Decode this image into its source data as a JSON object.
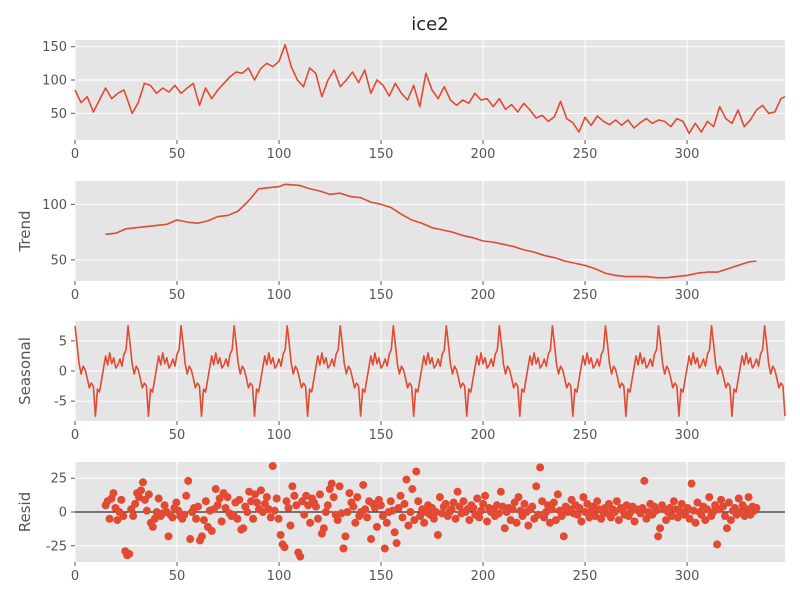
{
  "chart_data": {
    "type": "line",
    "title": "ice2",
    "color": "#E24A33",
    "panel_bg": "#E5E5E5",
    "grid_color": "#FFFFFF",
    "panels": [
      {
        "id": "observed",
        "type": "line",
        "ylabel": "",
        "xlim": [
          0,
          348
        ],
        "ylim": [
          10,
          160
        ],
        "xticks": [
          0,
          50,
          100,
          150,
          200,
          250,
          300
        ],
        "yticks": [
          50,
          100,
          150
        ],
        "points": [
          [
            0,
            85
          ],
          [
            3,
            66
          ],
          [
            6,
            75
          ],
          [
            9,
            52
          ],
          [
            12,
            70
          ],
          [
            15,
            88
          ],
          [
            18,
            72
          ],
          [
            21,
            80
          ],
          [
            24,
            85
          ],
          [
            26,
            68
          ],
          [
            28,
            50
          ],
          [
            31,
            66
          ],
          [
            34,
            95
          ],
          [
            37,
            92
          ],
          [
            40,
            80
          ],
          [
            43,
            88
          ],
          [
            46,
            82
          ],
          [
            49,
            92
          ],
          [
            52,
            80
          ],
          [
            55,
            88
          ],
          [
            58,
            95
          ],
          [
            61,
            62
          ],
          [
            64,
            88
          ],
          [
            67,
            72
          ],
          [
            70,
            85
          ],
          [
            73,
            95
          ],
          [
            76,
            105
          ],
          [
            79,
            112
          ],
          [
            82,
            110
          ],
          [
            85,
            118
          ],
          [
            88,
            100
          ],
          [
            91,
            117
          ],
          [
            94,
            125
          ],
          [
            97,
            120
          ],
          [
            100,
            128
          ],
          [
            103,
            153
          ],
          [
            106,
            120
          ],
          [
            109,
            100
          ],
          [
            112,
            90
          ],
          [
            115,
            118
          ],
          [
            118,
            110
          ],
          [
            121,
            75
          ],
          [
            124,
            100
          ],
          [
            127,
            115
          ],
          [
            130,
            90
          ],
          [
            133,
            100
          ],
          [
            136,
            112
          ],
          [
            139,
            96
          ],
          [
            142,
            115
          ],
          [
            145,
            80
          ],
          [
            148,
            100
          ],
          [
            151,
            92
          ],
          [
            154,
            76
          ],
          [
            157,
            95
          ],
          [
            160,
            80
          ],
          [
            163,
            70
          ],
          [
            166,
            92
          ],
          [
            169,
            60
          ],
          [
            172,
            110
          ],
          [
            175,
            85
          ],
          [
            178,
            72
          ],
          [
            181,
            90
          ],
          [
            184,
            70
          ],
          [
            187,
            62
          ],
          [
            190,
            70
          ],
          [
            193,
            65
          ],
          [
            196,
            80
          ],
          [
            199,
            70
          ],
          [
            202,
            72
          ],
          [
            205,
            60
          ],
          [
            208,
            72
          ],
          [
            211,
            56
          ],
          [
            214,
            63
          ],
          [
            217,
            52
          ],
          [
            220,
            65
          ],
          [
            223,
            55
          ],
          [
            226,
            43
          ],
          [
            229,
            47
          ],
          [
            232,
            38
          ],
          [
            235,
            45
          ],
          [
            238,
            68
          ],
          [
            241,
            42
          ],
          [
            244,
            36
          ],
          [
            247,
            22
          ],
          [
            250,
            44
          ],
          [
            253,
            32
          ],
          [
            256,
            46
          ],
          [
            259,
            38
          ],
          [
            262,
            33
          ],
          [
            265,
            40
          ],
          [
            268,
            32
          ],
          [
            271,
            40
          ],
          [
            274,
            28
          ],
          [
            277,
            36
          ],
          [
            280,
            42
          ],
          [
            283,
            35
          ],
          [
            286,
            40
          ],
          [
            289,
            38
          ],
          [
            292,
            30
          ],
          [
            295,
            42
          ],
          [
            298,
            38
          ],
          [
            301,
            20
          ],
          [
            304,
            35
          ],
          [
            307,
            22
          ],
          [
            310,
            38
          ],
          [
            313,
            30
          ],
          [
            316,
            60
          ],
          [
            319,
            42
          ],
          [
            322,
            35
          ],
          [
            325,
            55
          ],
          [
            328,
            30
          ],
          [
            331,
            40
          ],
          [
            334,
            55
          ],
          [
            337,
            62
          ],
          [
            340,
            50
          ],
          [
            343,
            52
          ],
          [
            346,
            72
          ],
          [
            348,
            75
          ]
        ]
      },
      {
        "id": "trend",
        "type": "line",
        "ylabel": "Trend",
        "xlim": [
          0,
          348
        ],
        "ylim": [
          31,
          121
        ],
        "xticks": [
          0,
          50,
          100,
          150,
          200,
          250,
          300
        ],
        "yticks": [
          50,
          100
        ],
        "points": [
          [
            15,
            73
          ],
          [
            20,
            74
          ],
          [
            25,
            78
          ],
          [
            30,
            79
          ],
          [
            40,
            81
          ],
          [
            45,
            82
          ],
          [
            50,
            86
          ],
          [
            55,
            84
          ],
          [
            60,
            83
          ],
          [
            65,
            85
          ],
          [
            70,
            89
          ],
          [
            75,
            90
          ],
          [
            80,
            94
          ],
          [
            85,
            103
          ],
          [
            90,
            114
          ],
          [
            95,
            115
          ],
          [
            100,
            116
          ],
          [
            103,
            118
          ],
          [
            110,
            117
          ],
          [
            115,
            114
          ],
          [
            120,
            112
          ],
          [
            125,
            109
          ],
          [
            130,
            110
          ],
          [
            135,
            107
          ],
          [
            140,
            106
          ],
          [
            145,
            102
          ],
          [
            150,
            100
          ],
          [
            155,
            97
          ],
          [
            160,
            91
          ],
          [
            165,
            86
          ],
          [
            170,
            83
          ],
          [
            175,
            79
          ],
          [
            180,
            77
          ],
          [
            185,
            75
          ],
          [
            190,
            72
          ],
          [
            195,
            70
          ],
          [
            200,
            67
          ],
          [
            205,
            66
          ],
          [
            210,
            64
          ],
          [
            215,
            62
          ],
          [
            220,
            59
          ],
          [
            225,
            57
          ],
          [
            230,
            54
          ],
          [
            235,
            52
          ],
          [
            240,
            49
          ],
          [
            245,
            47
          ],
          [
            250,
            45
          ],
          [
            255,
            42
          ],
          [
            260,
            38
          ],
          [
            265,
            36
          ],
          [
            270,
            35
          ],
          [
            280,
            35
          ],
          [
            285,
            34
          ],
          [
            290,
            34
          ],
          [
            295,
            35
          ],
          [
            300,
            36
          ],
          [
            305,
            38
          ],
          [
            310,
            39
          ],
          [
            315,
            39
          ],
          [
            320,
            42
          ],
          [
            325,
            45
          ],
          [
            330,
            48
          ],
          [
            334,
            49
          ]
        ]
      },
      {
        "id": "seasonal",
        "type": "line",
        "ylabel": "Seasonal",
        "xlim": [
          0,
          348
        ],
        "ylim": [
          -8.3,
          8.3
        ],
        "xticks": [
          0,
          50,
          100,
          150,
          200,
          250,
          300
        ],
        "yticks": [
          -5,
          0,
          5
        ],
        "period": 26,
        "pattern": [
          0.8,
          0.2,
          -1.2,
          -2.8,
          -2.0,
          -2.5,
          -7.5,
          -3.0,
          -3.5,
          -1.5,
          0.5,
          2.5,
          1.0,
          3.0,
          1.2,
          2.2,
          0.5,
          1.0,
          2.0,
          0.8,
          2.8,
          3.5,
          7.5,
          4.5,
          1.2,
          -0.5
        ],
        "phase": 22
      },
      {
        "id": "resid",
        "type": "scatter",
        "ylabel": "Resid",
        "xlim": [
          0,
          348
        ],
        "ylim": [
          -37,
          37
        ],
        "xticks": [
          0,
          50,
          100,
          150,
          200,
          250,
          300
        ],
        "yticks": [
          -25,
          0,
          25
        ],
        "zero_line": true,
        "x_start": 15,
        "x_end": 334,
        "values": [
          5,
          8,
          -5,
          10,
          14,
          3,
          -6,
          0,
          9,
          -3,
          -29,
          -32,
          -31,
          2,
          -3,
          6,
          14,
          11,
          16,
          22,
          9,
          1,
          13,
          -8,
          -11,
          -5,
          0,
          10,
          -3,
          -1,
          5,
          0,
          -18,
          -2,
          -4,
          3,
          7,
          1,
          -3,
          -5,
          -2,
          12,
          23,
          -20,
          0,
          3,
          -5,
          4,
          -21,
          -18,
          -6,
          8,
          -11,
          1,
          -14,
          2,
          17,
          5,
          10,
          -7,
          14,
          3,
          11,
          -1,
          -3,
          -2,
          7,
          -5,
          9,
          -13,
          -12,
          4,
          0,
          15,
          8,
          -5,
          13,
          7,
          2,
          16,
          0,
          6,
          11,
          2,
          -4,
          34,
          1,
          10,
          -5,
          -17,
          -24,
          -26,
          8,
          3,
          -10,
          19,
          12,
          5,
          -30,
          -33,
          8,
          -2,
          12,
          5,
          -8,
          10,
          7,
          4,
          -5,
          13,
          -16,
          -12,
          0,
          5,
          17,
          21,
          11,
          -2,
          -6,
          19,
          -1,
          -27,
          -18,
          0,
          14,
          7,
          4,
          -8,
          11,
          -3,
          0,
          20,
          2,
          -4,
          8,
          -20,
          6,
          3,
          -11,
          9,
          5,
          -3,
          -27,
          -8,
          0,
          8,
          1,
          -15,
          -23,
          3,
          12,
          -4,
          6,
          24,
          -10,
          0,
          17,
          -6,
          30,
          8,
          -3,
          2,
          -8,
          0,
          5,
          -2,
          3,
          -5,
          0,
          -17,
          11,
          -1,
          4,
          6,
          -3,
          0,
          2,
          7,
          -5,
          15,
          4,
          -1,
          8,
          0,
          2,
          -6,
          5,
          3,
          -2,
          10,
          -4,
          1,
          6,
          12,
          -7,
          3,
          0,
          2,
          -3,
          5,
          -1,
          15,
          4,
          -12,
          0,
          3,
          -6,
          2,
          7,
          -8,
          11,
          1,
          -3,
          6,
          0,
          -10,
          2,
          4,
          -5,
          19,
          -2,
          33,
          8,
          -4,
          0,
          5,
          -8,
          2,
          7,
          -6,
          13,
          1,
          -3,
          -18,
          4,
          0,
          2,
          9,
          -1,
          5,
          -2,
          3,
          -7,
          11,
          0,
          6,
          -4,
          1,
          4,
          -3,
          8,
          2,
          -5,
          0,
          3,
          -1,
          6,
          -4,
          2,
          0,
          8,
          -6,
          3,
          1,
          -2,
          5,
          -3,
          0,
          4,
          -7,
          2,
          1,
          -1,
          3,
          23,
          -5,
          0,
          6,
          -2,
          4,
          1,
          -18,
          -12,
          5,
          2,
          -6,
          0,
          3,
          -3,
          8,
          2,
          -4,
          1,
          6,
          -2,
          0,
          3,
          -5,
          21,
          1,
          -8,
          7,
          0,
          -2,
          4,
          -6,
          2,
          11,
          -3,
          0,
          5,
          -24,
          2,
          9,
          4,
          -3,
          -12,
          7,
          -6,
          1,
          3,
          -2,
          10,
          0,
          5,
          -3,
          2,
          11,
          -2,
          4,
          1,
          3
        ]
      }
    ]
  }
}
